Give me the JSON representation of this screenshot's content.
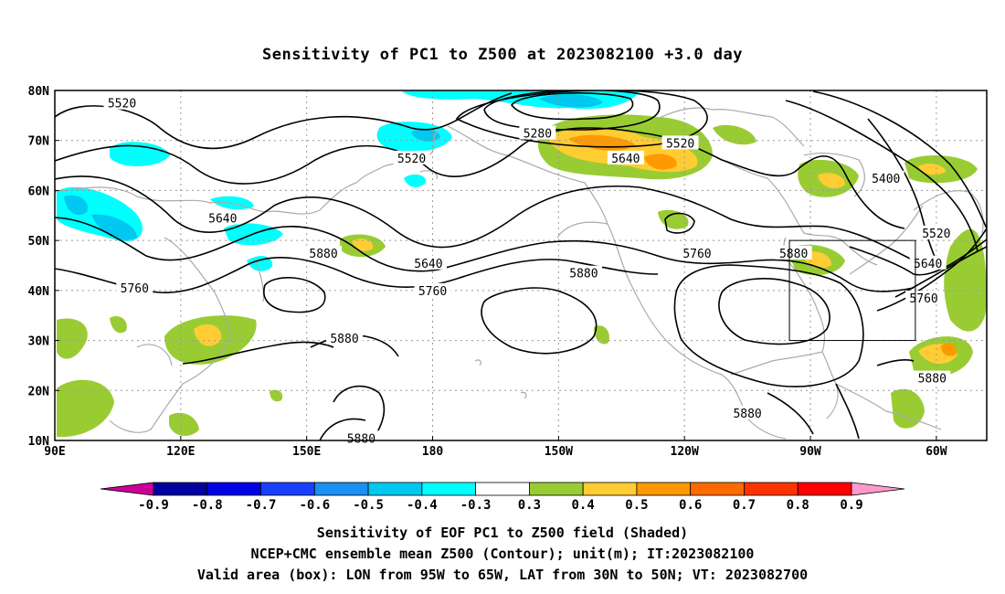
{
  "title": "Sensitivity of PC1 to Z500 at 2023082100 +3.0 day",
  "captions": [
    "Sensitivity of EOF PC1 to Z500 field (Shaded)",
    "NCEP+CMC ensemble mean Z500 (Contour); unit(m); IT:2023082100",
    "Valid area (box): LON from 95W to 65W, LAT from 30N to 50N; VT: 2023082700"
  ],
  "axes": {
    "lon_labels": [
      "90E",
      "120E",
      "150E",
      "180",
      "150W",
      "120W",
      "90W",
      "60W"
    ],
    "lon_values": [
      90,
      120,
      150,
      180,
      210,
      240,
      270,
      300
    ],
    "lat_labels": [
      "10N",
      "20N",
      "30N",
      "40N",
      "50N",
      "60N",
      "70N",
      "80N"
    ],
    "lat_values": [
      10,
      20,
      30,
      40,
      50,
      60,
      70,
      80
    ],
    "lon_range": [
      90,
      312
    ],
    "lat_range": [
      10,
      80
    ],
    "grid": "dotted"
  },
  "valid_box": {
    "lon_min": 265,
    "lon_max": 295,
    "lat_min": 30,
    "lat_max": 50
  },
  "colorbar": {
    "labels": [
      "-0.9",
      "-0.8",
      "-0.7",
      "-0.6",
      "-0.5",
      "-0.4",
      "-0.3",
      "0.3",
      "0.4",
      "0.5",
      "0.6",
      "0.7",
      "0.8",
      "0.9"
    ],
    "colors": [
      "#cc0099",
      "#0000a0",
      "#0000e6",
      "#1a40ff",
      "#1a90f0",
      "#00c8f0",
      "#00ffff",
      "#ffffff",
      "#99cc33",
      "#ffcc33",
      "#ff9900",
      "#ff6a00",
      "#ff3300",
      "#ff0000",
      "#ff99cc"
    ]
  },
  "contour_labels": [
    {
      "text": "5520",
      "lon": 106,
      "lat": 77.5
    },
    {
      "text": "5280",
      "lon": 205,
      "lat": 71.5
    },
    {
      "text": "5520",
      "lon": 239,
      "lat": 69.5
    },
    {
      "text": "5520",
      "lon": 175,
      "lat": 66.5
    },
    {
      "text": "5640",
      "lon": 226,
      "lat": 66.5
    },
    {
      "text": "5400",
      "lon": 288,
      "lat": 62.5
    },
    {
      "text": "5640",
      "lon": 130,
      "lat": 54.5
    },
    {
      "text": "5520",
      "lon": 300,
      "lat": 51.5
    },
    {
      "text": "5880",
      "lon": 154,
      "lat": 47.5
    },
    {
      "text": "5760",
      "lon": 243,
      "lat": 47.5
    },
    {
      "text": "5880",
      "lon": 266,
      "lat": 47.5
    },
    {
      "text": "5640",
      "lon": 179,
      "lat": 45.5
    },
    {
      "text": "5640",
      "lon": 298,
      "lat": 45.5
    },
    {
      "text": "5880",
      "lon": 216,
      "lat": 43.5
    },
    {
      "text": "5760",
      "lon": 109,
      "lat": 40.5
    },
    {
      "text": "5760",
      "lon": 180,
      "lat": 40.0
    },
    {
      "text": "5760",
      "lon": 297,
      "lat": 38.5
    },
    {
      "text": "5880",
      "lon": 159,
      "lat": 30.5
    },
    {
      "text": "5880",
      "lon": 299,
      "lat": 22.5
    },
    {
      "text": "5880",
      "lon": 255,
      "lat": 15.5
    },
    {
      "text": "5880",
      "lon": 163,
      "lat": 10.5
    }
  ]
}
